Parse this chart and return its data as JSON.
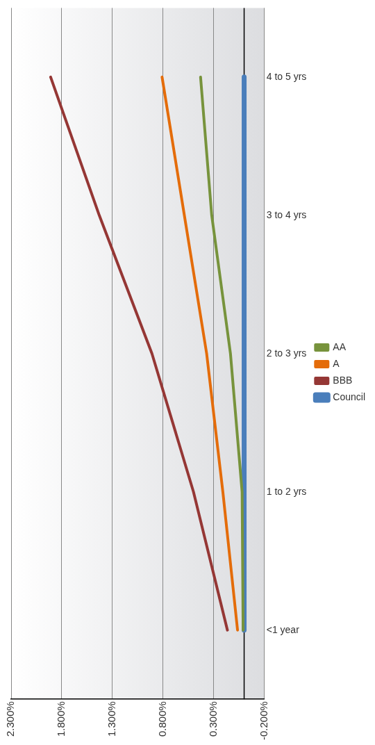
{
  "chart_data": {
    "type": "line",
    "orientation": "horizontal",
    "categories": [
      "4 to 5 yrs",
      "3 to 4 yrs",
      "2 to 3 yrs",
      "1 to 2 yrs",
      "<1 year"
    ],
    "series": [
      {
        "name": "AA",
        "color": "#77933c",
        "values": [
          0.43,
          0.32,
          0.135,
          0.02,
          0.01
        ]
      },
      {
        "name": "A",
        "color": "#e46c0a",
        "values": [
          0.81,
          0.59,
          0.37,
          0.21,
          0.065
        ]
      },
      {
        "name": "BBB",
        "color": "#953735",
        "values": [
          1.91,
          1.43,
          0.91,
          0.5,
          0.165
        ]
      },
      {
        "name": "Council",
        "color": "#4a7ebb",
        "values": [
          0,
          0,
          0,
          0,
          0
        ]
      }
    ],
    "xlim": [
      2.3,
      -0.2
    ],
    "xticks": [
      {
        "value": -0.2,
        "label": "-0.200%"
      },
      {
        "value": 0.3,
        "label": "0.300%"
      },
      {
        "value": 0.8,
        "label": "0.800%"
      },
      {
        "value": 1.3,
        "label": "1.300%"
      },
      {
        "value": 1.8,
        "label": "1.800%"
      },
      {
        "value": 2.3,
        "label": "2.300%"
      }
    ],
    "ref_lines": [
      {
        "axis": "x",
        "value": 0,
        "color": "#000000"
      }
    ],
    "grid": "x",
    "legend": "right",
    "marker": "none",
    "line_style": "solid"
  }
}
